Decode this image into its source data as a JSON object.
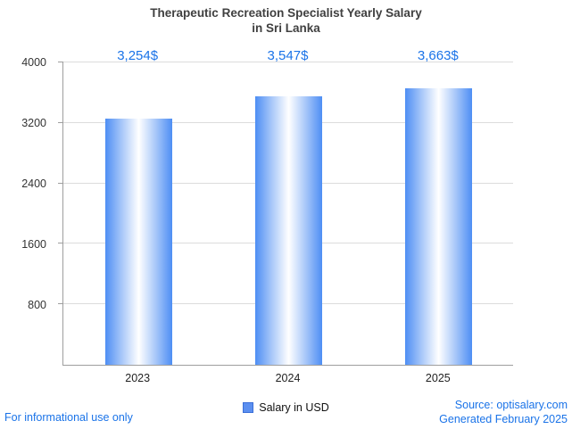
{
  "title": {
    "line1": "Therapeutic Recreation Specialist Yearly Salary",
    "line2": "in Sri Lanka"
  },
  "chart_data": {
    "type": "bar",
    "title": "Therapeutic Recreation Specialist Yearly Salary in Sri Lanka",
    "categories": [
      "2023",
      "2024",
      "2025"
    ],
    "values": [
      3254,
      3547,
      3663
    ],
    "value_labels": [
      "3,254$",
      "3,547$",
      "3,663$"
    ],
    "xlabel": "",
    "ylabel": "",
    "ylim": [
      0,
      4000
    ],
    "yticks": [
      800,
      1600,
      2400,
      3200,
      4000
    ],
    "grid": true,
    "legend": [
      "Salary in USD"
    ],
    "legend_position": "bottom",
    "bar_color": "#4e8ef4",
    "value_label_color": "#1a73e8"
  },
  "legend": {
    "salary_label": "Salary in USD"
  },
  "footer": {
    "left_note": "For informational use only",
    "source": "Source: optisalary.com",
    "generated": "Generated February 2025"
  }
}
